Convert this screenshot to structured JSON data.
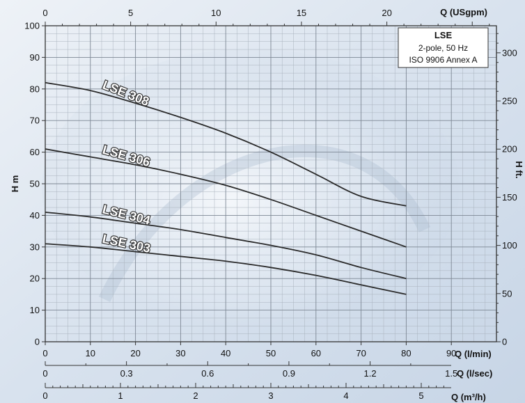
{
  "chart_data": {
    "type": "line",
    "title": "",
    "legend": {
      "title": "LSE",
      "lines": [
        "2-pole, 50 Hz",
        "ISO 9906 Annex A"
      ],
      "placement": "top-right"
    },
    "y_left": {
      "label": "H m",
      "ylim": [
        0,
        100
      ],
      "ticks": [
        0,
        10,
        20,
        30,
        40,
        50,
        60,
        70,
        80,
        90,
        100
      ]
    },
    "y_right": {
      "label": "H ft.",
      "ticks": [
        0,
        50,
        100,
        150,
        200,
        250,
        300
      ]
    },
    "x_lmin": {
      "label": "Q (l/min)",
      "xlim": [
        0,
        100
      ],
      "ticks": [
        0,
        10,
        20,
        30,
        40,
        50,
        60,
        70,
        80,
        90
      ]
    },
    "x_lsec": {
      "label": "Q (l/sec)",
      "tick_labels": [
        "0",
        "0.3",
        "0.6",
        "0.9",
        "1.2",
        "1.5"
      ]
    },
    "x_m3h": {
      "label": "Q (m³/h)",
      "tick_labels": [
        "0",
        "1",
        "2",
        "3",
        "4",
        "5"
      ]
    },
    "x_usgpm": {
      "label": "Q (USgpm)",
      "tick_labels": [
        "0",
        "5",
        "10",
        "15",
        "20"
      ]
    },
    "grid": true,
    "series": [
      {
        "name": "LSE 308",
        "x": [
          0,
          10,
          20,
          30,
          40,
          50,
          60,
          70,
          80
        ],
        "y": [
          82,
          79.5,
          75.5,
          71,
          66,
          60,
          53,
          46,
          43
        ]
      },
      {
        "name": "LSE 306",
        "x": [
          0,
          10,
          20,
          30,
          40,
          50,
          60,
          70,
          80
        ],
        "y": [
          61,
          58.5,
          56,
          53,
          49.5,
          45,
          40,
          35,
          30
        ]
      },
      {
        "name": "LSE 304",
        "x": [
          0,
          10,
          20,
          30,
          40,
          50,
          60,
          70,
          80
        ],
        "y": [
          41,
          39.5,
          37.5,
          35.5,
          33,
          30.5,
          27.5,
          23.5,
          20
        ]
      },
      {
        "name": "LSE 303",
        "x": [
          0,
          10,
          20,
          30,
          40,
          50,
          60,
          70,
          80
        ],
        "y": [
          31,
          30,
          28.5,
          27,
          25.5,
          23.5,
          21,
          18,
          15
        ]
      }
    ]
  }
}
